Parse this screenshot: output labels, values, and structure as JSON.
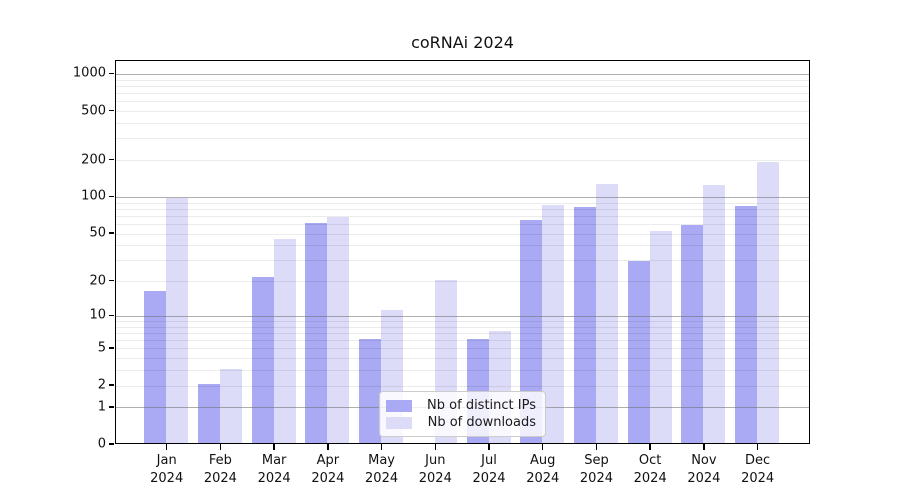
{
  "chart_data": {
    "type": "bar",
    "title": "coRNAi 2024",
    "x_categories": [
      "Jan",
      "Feb",
      "Mar",
      "Apr",
      "May",
      "Jun",
      "Jul",
      "Aug",
      "Sep",
      "Oct",
      "Nov",
      "Dec"
    ],
    "x_year": "2024",
    "series": [
      {
        "name": "Nb of distinct IPs",
        "color": "#a9a9f4",
        "values": [
          16,
          2,
          21,
          60,
          6,
          0,
          6,
          63,
          80,
          29,
          57,
          82
        ]
      },
      {
        "name": "Nb of downloads",
        "color": "#dcdcf8",
        "values": [
          95,
          3,
          44,
          67,
          11,
          20,
          7,
          84,
          124,
          51,
          122,
          188
        ]
      }
    ],
    "yscale": "log1p",
    "ylim": [
      0,
      1286
    ],
    "ytick_values": [
      0,
      1,
      2,
      5,
      10,
      20,
      50,
      100,
      200,
      500,
      1000
    ],
    "ytick_labels": [
      "0",
      "1",
      "2",
      "5",
      "10",
      "20",
      "50",
      "100",
      "200",
      "500",
      "1000"
    ],
    "grid": "on",
    "legend_position": "lower-center"
  }
}
